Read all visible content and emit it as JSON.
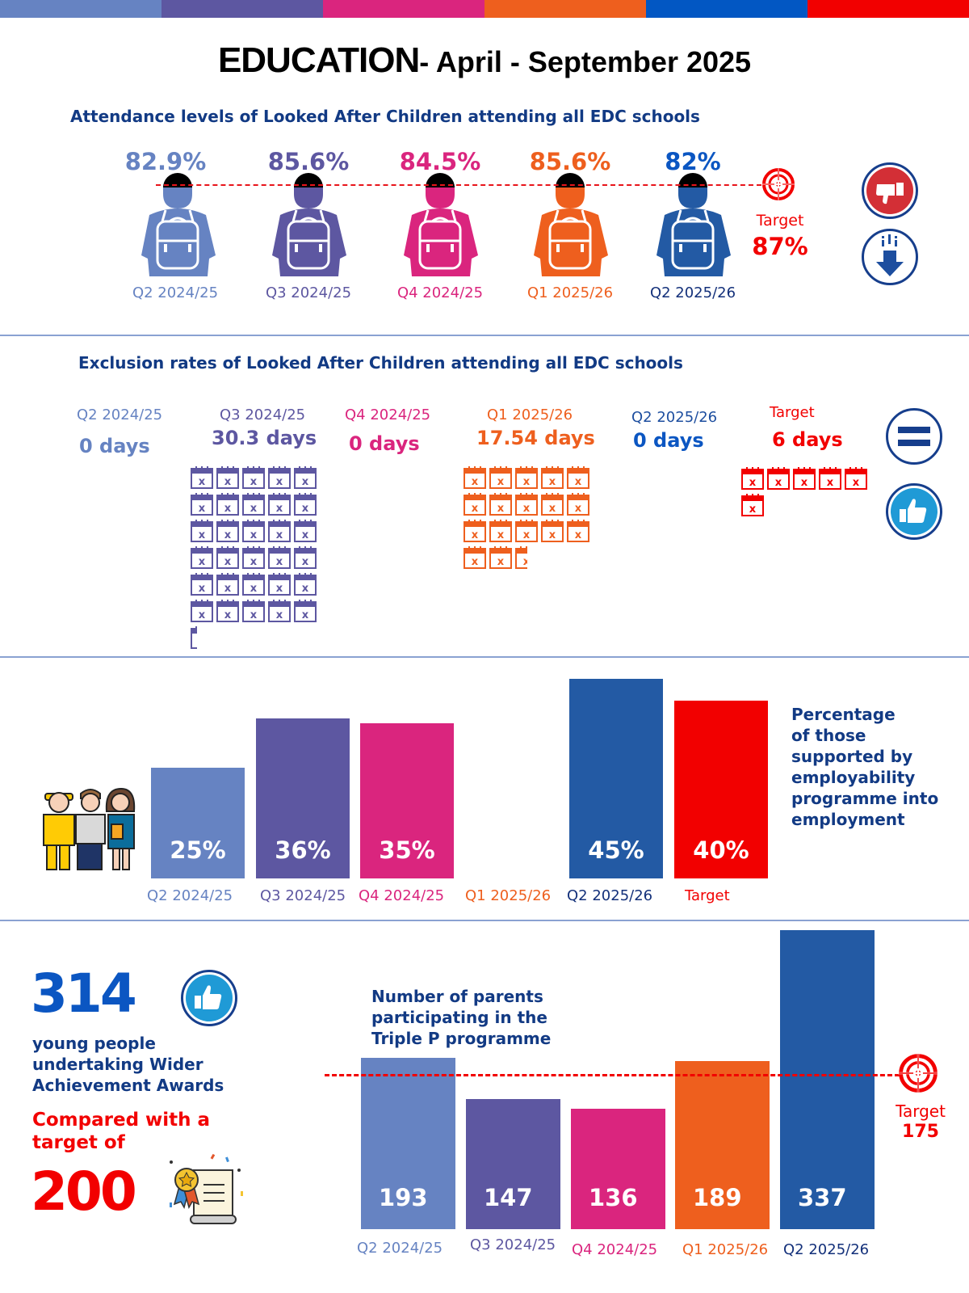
{
  "header": {
    "title_main": "EDUCATION",
    "title_rest": "- April - September 2025",
    "strip_colors": [
      "#6683c2",
      "#5d57a1",
      "#da257e",
      "#ee5f1e",
      "#0257c3",
      "#f20000"
    ]
  },
  "colors": {
    "q2_2425": "#6683c2",
    "q3_2425": "#5d57a1",
    "q4_2425": "#da257e",
    "q1_2526": "#ee5f1e",
    "q2_2526": "#235aa4",
    "target": "#f20000",
    "heading": "#123a84"
  },
  "attendance": {
    "title": "Attendance levels of Looked After Children attending all EDC schools",
    "items": [
      {
        "quarter": "Q2 2024/25",
        "value": "82.9%"
      },
      {
        "quarter": "Q3 2024/25",
        "value": "85.6%"
      },
      {
        "quarter": "Q4 2024/25",
        "value": "84.5%"
      },
      {
        "quarter": "Q1 2025/26",
        "value": "85.6%"
      },
      {
        "quarter": "Q2 2025/26",
        "value": "82%"
      }
    ],
    "target_label": "Target",
    "target_value": "87%",
    "status_icons": [
      "thumbs-down-icon",
      "arrow-down-icon"
    ]
  },
  "exclusion": {
    "title": "Exclusion rates of Looked After Children attending all EDC schools",
    "items": [
      {
        "quarter": "Q2 2024/25",
        "value": "0 days",
        "days": 0
      },
      {
        "quarter": "Q3 2024/25",
        "value": "30.3 days",
        "days": 30.3
      },
      {
        "quarter": "Q4 2024/25",
        "value": "0 days",
        "days": 0
      },
      {
        "quarter": "Q1 2025/26",
        "value": "17.54 days",
        "days": 17.54
      },
      {
        "quarter": "Q2 2025/26",
        "value": "0 days",
        "days": 0
      }
    ],
    "target_label": "Target",
    "target_value": "6 days",
    "target_days": 6,
    "calendar_mark": "x",
    "status_icons": [
      "equals-icon",
      "thumbs-up-icon"
    ]
  },
  "chart_data": [
    {
      "type": "bar",
      "title": "Percentage of those supported by employability programme into employment",
      "categories": [
        "Q2 2024/25",
        "Q3 2024/25",
        "Q4 2024/25",
        "Q1 2025/26",
        "Q2 2025/26",
        "Target"
      ],
      "values": [
        25,
        36,
        35,
        null,
        45,
        40
      ],
      "value_labels": [
        "25%",
        "36%",
        "35%",
        "",
        "45%",
        "40%"
      ],
      "ylim": [
        0,
        45
      ],
      "xlabel": "",
      "ylabel": "",
      "grid": false
    },
    {
      "type": "bar",
      "title": "Number of parents participating in the Triple P programme",
      "categories": [
        "Q2 2024/25",
        "Q3 2024/25",
        "Q4 2024/25",
        "Q1 2025/26",
        "Q2 2025/26"
      ],
      "values": [
        193,
        147,
        136,
        189,
        337
      ],
      "value_labels": [
        "193",
        "147",
        "136",
        "189",
        "337"
      ],
      "target": 175,
      "target_label": "Target",
      "target_value": "175",
      "ylim": [
        0,
        337
      ],
      "xlabel": "",
      "ylabel": "",
      "grid": false
    }
  ],
  "employability": {
    "title_lines": [
      "Percentage",
      "of those",
      "supported by",
      "employability",
      "programme into",
      "employment"
    ]
  },
  "triple_p": {
    "title_lines": [
      "Number of parents",
      "participating in the",
      "Triple P programme"
    ]
  },
  "awards": {
    "count": "314",
    "desc_lines": [
      "young people",
      "undertaking Wider",
      "Achievement Awards"
    ],
    "compare_lines": [
      "Compared with a",
      "target of"
    ],
    "target": "200"
  }
}
